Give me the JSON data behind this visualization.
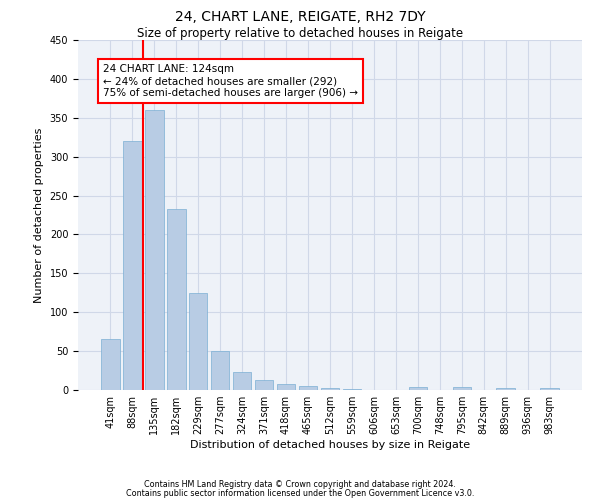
{
  "title": "24, CHART LANE, REIGATE, RH2 7DY",
  "subtitle": "Size of property relative to detached houses in Reigate",
  "xlabel": "Distribution of detached houses by size in Reigate",
  "ylabel": "Number of detached properties",
  "footnote1": "Contains HM Land Registry data © Crown copyright and database right 2024.",
  "footnote2": "Contains public sector information licensed under the Open Government Licence v3.0.",
  "categories": [
    "41sqm",
    "88sqm",
    "135sqm",
    "182sqm",
    "229sqm",
    "277sqm",
    "324sqm",
    "371sqm",
    "418sqm",
    "465sqm",
    "512sqm",
    "559sqm",
    "606sqm",
    "653sqm",
    "700sqm",
    "748sqm",
    "795sqm",
    "842sqm",
    "889sqm",
    "936sqm",
    "983sqm"
  ],
  "values": [
    65,
    320,
    360,
    233,
    125,
    50,
    23,
    13,
    8,
    5,
    3,
    1,
    0,
    0,
    4,
    0,
    4,
    0,
    3,
    0,
    3
  ],
  "bar_color": "#b8cce4",
  "bar_edge_color": "#7bafd4",
  "grid_color": "#d0d8e8",
  "background_color": "#eef2f8",
  "annotation_text": "24 CHART LANE: 124sqm\n← 24% of detached houses are smaller (292)\n75% of semi-detached houses are larger (906) →",
  "annotation_box_color": "white",
  "annotation_border_color": "red",
  "redline_x": 1.5,
  "ylim": [
    0,
    450
  ],
  "yticks": [
    0,
    50,
    100,
    150,
    200,
    250,
    300,
    350,
    400,
    450
  ],
  "title_fontsize": 10,
  "subtitle_fontsize": 8.5,
  "tick_fontsize": 7,
  "ylabel_fontsize": 8,
  "xlabel_fontsize": 8,
  "annotation_fontsize": 7.5
}
